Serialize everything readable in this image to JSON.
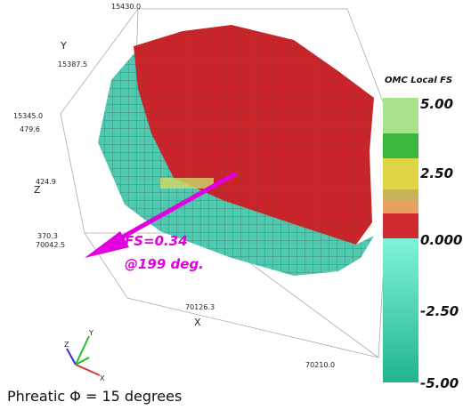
{
  "scene": {
    "axes": {
      "y_label": "Y",
      "y_ticks": [
        "15430.0",
        "15387.5",
        "15345.0"
      ],
      "z_label": "Z",
      "z_ticks": [
        "479.6",
        "424.9",
        "370.3"
      ],
      "x_label": "X",
      "x_ticks": [
        "70042.5",
        "70126.3",
        "70210.0"
      ]
    },
    "annotation": {
      "line1": "FS=0.34",
      "line2": "@199 deg."
    },
    "triad": {
      "x": "X",
      "y": "Y",
      "z": "Z"
    }
  },
  "colorbar": {
    "title": "OMC Local FS",
    "labels": [
      "5.00",
      "2.50",
      "0.000",
      "-2.50",
      "-5.00"
    ]
  },
  "caption": "Phreatic Φ = 15 degrees"
}
